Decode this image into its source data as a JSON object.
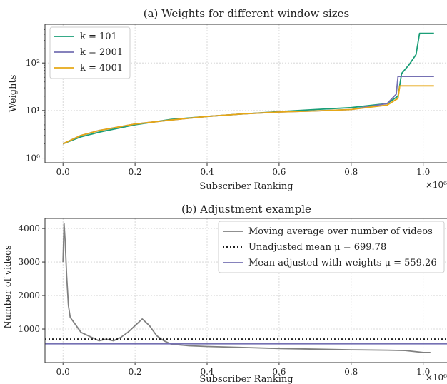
{
  "chart_data": [
    {
      "type": "line",
      "title": "(a) Weights for different window sizes",
      "xlabel": "Subscriber Ranking",
      "ylabel": "Weights",
      "x_multiplier_label": "×10⁶",
      "xlim": [
        -0.05,
        1.07
      ],
      "ylim": [
        0.8,
        650
      ],
      "yscale": "log",
      "xticks": [
        0.0,
        0.2,
        0.4,
        0.6,
        0.8,
        1.0
      ],
      "xtick_labels": [
        "0.0",
        "0.2",
        "0.4",
        "0.6",
        "0.8",
        "1.0"
      ],
      "yticks": [
        1,
        10,
        100
      ],
      "ytick_labels": [
        "10⁰",
        "10¹",
        "10²"
      ],
      "grid": true,
      "legend": "top-left",
      "series": [
        {
          "name": "k = 101",
          "color": "#1a9e77",
          "x": [
            0.0,
            0.05,
            0.1,
            0.2,
            0.3,
            0.4,
            0.5,
            0.6,
            0.7,
            0.8,
            0.9,
            0.93,
            0.94,
            0.96,
            0.98,
            0.99,
            1.03
          ],
          "values": [
            2.0,
            2.8,
            3.5,
            5.0,
            6.5,
            7.5,
            8.5,
            9.5,
            10.5,
            11.5,
            14.0,
            20.0,
            60.0,
            90.0,
            150.0,
            420.0,
            420.0
          ]
        },
        {
          "name": "k = 2001",
          "color": "#7570b3",
          "x": [
            0.0,
            0.05,
            0.1,
            0.2,
            0.3,
            0.4,
            0.5,
            0.6,
            0.7,
            0.8,
            0.9,
            0.925,
            0.93,
            1.03
          ],
          "values": [
            2.0,
            3.0,
            3.8,
            5.2,
            6.3,
            7.5,
            8.5,
            9.3,
            9.8,
            10.5,
            14.0,
            22.0,
            52.0,
            52.0
          ]
        },
        {
          "name": "k = 4001",
          "color": "#e6a817",
          "x": [
            0.0,
            0.05,
            0.1,
            0.2,
            0.3,
            0.4,
            0.5,
            0.6,
            0.7,
            0.8,
            0.9,
            0.93,
            0.935,
            1.03
          ],
          "values": [
            2.0,
            3.0,
            3.8,
            5.2,
            6.3,
            7.5,
            8.5,
            9.3,
            9.8,
            10.5,
            13.0,
            18.0,
            33.0,
            33.0
          ]
        }
      ]
    },
    {
      "type": "line",
      "title": "(b) Adjustment example",
      "xlabel": "Subscriber Ranking",
      "ylabel": "Number of videos",
      "x_multiplier_label": "×10⁶",
      "xlim": [
        -0.05,
        1.07
      ],
      "ylim": [
        0,
        4300
      ],
      "xticks": [
        0.0,
        0.2,
        0.4,
        0.6,
        0.8,
        1.0
      ],
      "xtick_labels": [
        "0.0",
        "0.2",
        "0.4",
        "0.6",
        "0.8",
        "1.0"
      ],
      "yticks": [
        1000,
        2000,
        3000,
        4000
      ],
      "ytick_labels": [
        "1000",
        "2000",
        "3000",
        "4000"
      ],
      "grid": true,
      "legend": "top-right",
      "series": [
        {
          "name": "Moving average over number of videos",
          "color": "#808080",
          "style": "solid",
          "x": [
            0.0,
            0.003,
            0.006,
            0.01,
            0.015,
            0.02,
            0.03,
            0.05,
            0.08,
            0.1,
            0.12,
            0.14,
            0.16,
            0.18,
            0.2,
            0.22,
            0.24,
            0.26,
            0.28,
            0.3,
            0.35,
            0.4,
            0.5,
            0.6,
            0.7,
            0.8,
            0.9,
            0.95,
            1.0,
            1.02
          ],
          "values": [
            3000,
            4150,
            3600,
            2600,
            1700,
            1350,
            1200,
            900,
            750,
            650,
            700,
            650,
            750,
            900,
            1100,
            1300,
            1100,
            800,
            650,
            550,
            500,
            480,
            450,
            420,
            400,
            380,
            370,
            360,
            300,
            300
          ]
        },
        {
          "name": "Unadjusted mean μ = 699.78",
          "color": "#000000",
          "style": "dotted",
          "x": [
            -0.05,
            1.07
          ],
          "values": [
            699.78,
            699.78
          ]
        },
        {
          "name": "Mean adjusted with weights μ = 559.26",
          "color": "#7570b3",
          "style": "solid",
          "x": [
            -0.05,
            1.07
          ],
          "values": [
            559.26,
            559.26
          ]
        }
      ]
    }
  ]
}
